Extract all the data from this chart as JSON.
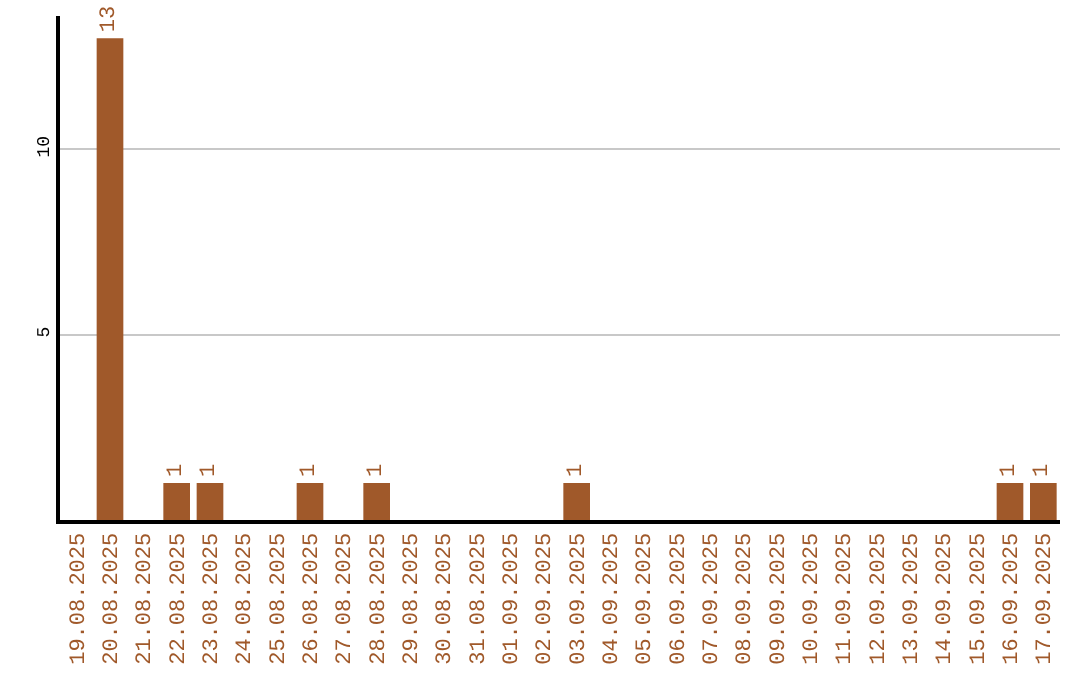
{
  "chart_data": {
    "type": "bar",
    "categories": [
      "19.08.2025",
      "20.08.2025",
      "21.08.2025",
      "22.08.2025",
      "23.08.2025",
      "24.08.2025",
      "25.08.2025",
      "26.08.2025",
      "27.08.2025",
      "28.08.2025",
      "29.08.2025",
      "30.08.2025",
      "31.08.2025",
      "01.09.2025",
      "02.09.2025",
      "03.09.2025",
      "04.09.2025",
      "05.09.2025",
      "06.09.2025",
      "07.09.2025",
      "08.09.2025",
      "09.09.2025",
      "10.09.2025",
      "11.09.2025",
      "12.09.2025",
      "13.09.2025",
      "14.09.2025",
      "15.09.2025",
      "16.09.2025",
      "17.09.2025"
    ],
    "values": [
      0,
      13,
      0,
      1,
      1,
      0,
      0,
      1,
      0,
      1,
      0,
      0,
      0,
      0,
      0,
      1,
      0,
      0,
      0,
      0,
      0,
      0,
      0,
      0,
      0,
      0,
      0,
      0,
      1,
      1
    ],
    "value_labels": [
      null,
      "13",
      null,
      "1",
      "1",
      null,
      null,
      "1",
      null,
      "1",
      null,
      null,
      null,
      null,
      null,
      "1",
      null,
      null,
      null,
      null,
      null,
      null,
      null,
      null,
      null,
      null,
      null,
      null,
      "1",
      "1"
    ],
    "color": "#a0592a",
    "ylim": [
      0,
      13.6
    ],
    "yticks": [
      5,
      10
    ],
    "grid": "y",
    "legend": false
  }
}
